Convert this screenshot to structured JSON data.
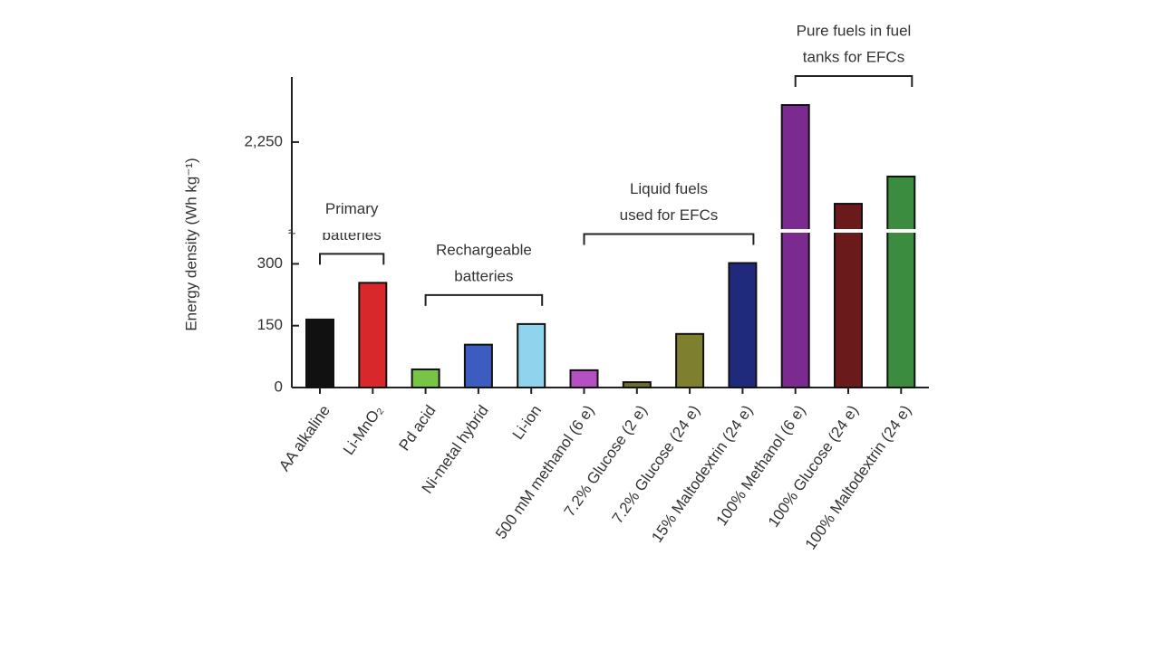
{
  "chart_data": {
    "type": "bar",
    "y_label": "Energy density (Wh kg⁻¹)",
    "axis_segments": [
      {
        "ylim": [
          0,
          380
        ],
        "yticks": [
          0,
          150,
          300
        ]
      },
      {
        "ylim": [
          1500,
          2800
        ],
        "yticks": [
          {
            "value": 2250,
            "label": "2,250"
          }
        ]
      }
    ],
    "groups": [
      {
        "name_lines": [
          "Primary",
          "batteries"
        ],
        "categories": [
          "AA alkaline",
          "Li-MnO₂"
        ],
        "values": [
          165,
          254
        ],
        "colors": [
          "#111111",
          "#d9282b"
        ]
      },
      {
        "name_lines": [
          "Rechargeable",
          "batteries"
        ],
        "categories": [
          "Pd acid",
          "Ni-metal hybrid",
          "Li-ion"
        ],
        "values": [
          44,
          104,
          154
        ],
        "colors": [
          "#78c444",
          "#3d5cc0",
          "#8fd4ec"
        ]
      },
      {
        "name_lines": [
          "Liquid fuels",
          "used for EFCs"
        ],
        "categories": [
          "500 mM methanol (6 e)",
          "7.2% Glucose (2 e)",
          "7.2% Glucose (24 e)",
          "15% Maltodextrin (24 e)"
        ],
        "values": [
          42,
          13,
          130,
          302
        ],
        "colors": [
          "#b550c2",
          "#6e6e2c",
          "#7f7f30",
          "#1f2a7c"
        ]
      },
      {
        "name_lines": [
          "Pure fuels in fuel",
          "tanks for EFCs"
        ],
        "categories": [
          "100% Methanol (6 e)",
          "100% Glucose (24 e)",
          "100% Maltodextrin (24 e)"
        ],
        "values": [
          2563,
          1729,
          1959
        ],
        "colors": [
          "#7b2a90",
          "#6b1a1c",
          "#3b8c3f"
        ]
      }
    ]
  }
}
